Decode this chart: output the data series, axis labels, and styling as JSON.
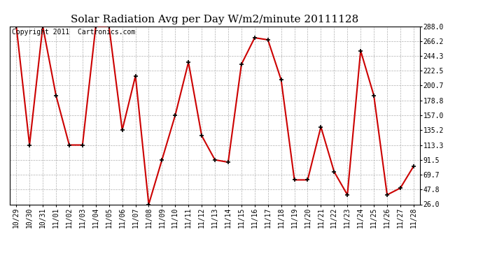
{
  "title": "Solar Radiation Avg per Day W/m2/minute 20111128",
  "copyright_text": "Copyright 2011  Cartronics.com",
  "x_labels": [
    "10/29",
    "10/30",
    "10/31",
    "11/01",
    "11/02",
    "11/03",
    "11/04",
    "11/05",
    "11/06",
    "11/07",
    "11/08",
    "11/09",
    "11/10",
    "11/11",
    "11/12",
    "11/13",
    "11/14",
    "11/15",
    "11/16",
    "11/17",
    "11/18",
    "11/19",
    "11/20",
    "11/21",
    "11/22",
    "11/23",
    "11/24",
    "11/25",
    "11/26",
    "11/27",
    "11/28"
  ],
  "y_values": [
    288.0,
    113.3,
    288.0,
    186.0,
    113.3,
    113.3,
    288.0,
    288.0,
    135.2,
    215.0,
    26.0,
    91.5,
    157.0,
    235.0,
    127.0,
    91.5,
    88.0,
    232.0,
    271.0,
    268.0,
    209.0,
    62.0,
    62.0,
    140.0,
    74.0,
    40.0,
    252.0,
    186.0,
    40.0,
    50.0,
    82.0
  ],
  "line_color": "#cc0000",
  "marker_color": "#000000",
  "bg_color": "#ffffff",
  "grid_color": "#b0b0b0",
  "y_ticks": [
    26.0,
    47.8,
    69.7,
    91.5,
    113.3,
    135.2,
    157.0,
    178.8,
    200.7,
    222.5,
    244.3,
    266.2,
    288.0
  ],
  "ylim_min": 26.0,
  "ylim_max": 288.0,
  "title_fontsize": 11,
  "copyright_fontsize": 7,
  "tick_fontsize": 7,
  "line_width": 1.5,
  "marker_size": 4
}
